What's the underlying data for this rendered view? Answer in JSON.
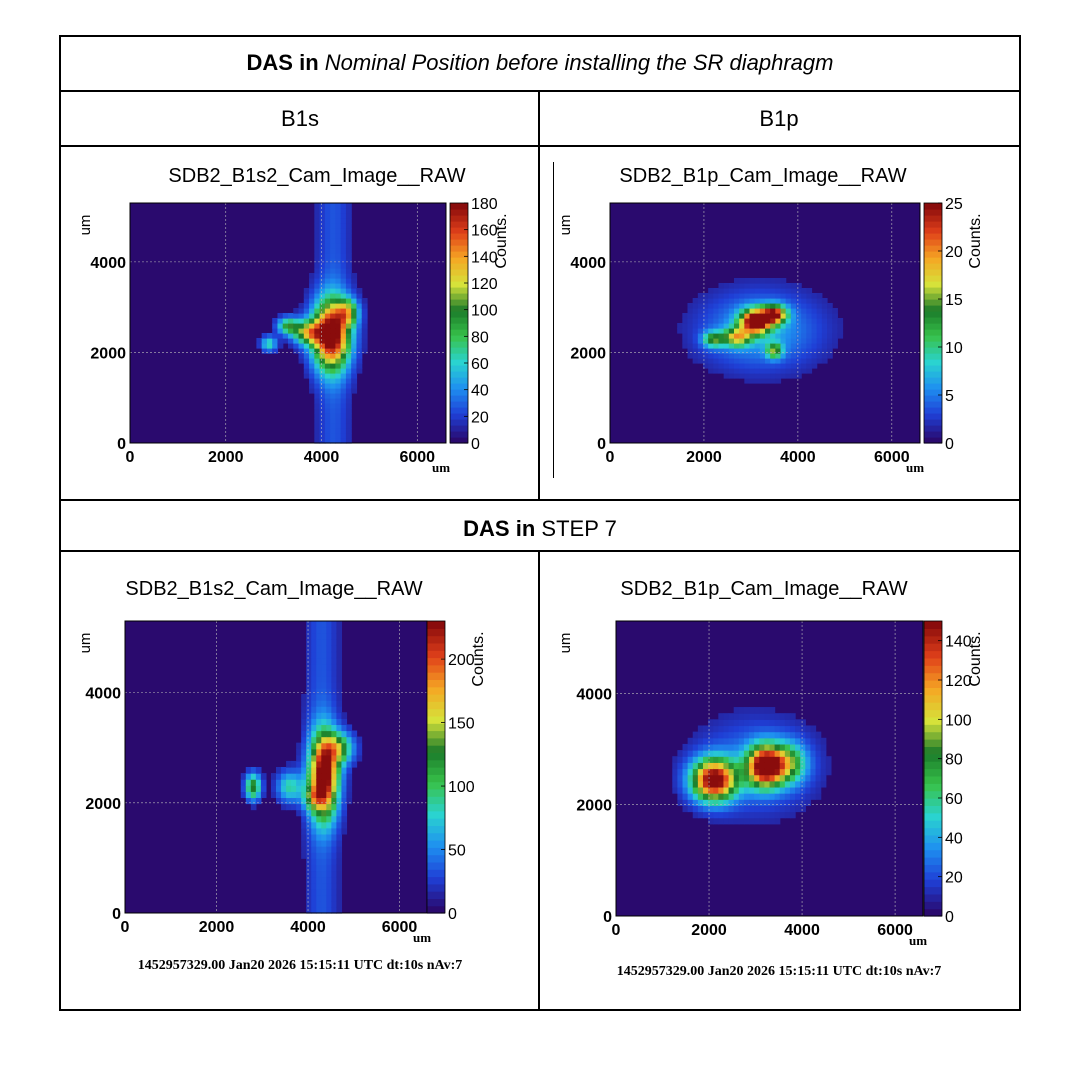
{
  "header": {
    "row1_bold": "DAS in",
    "row1_italic": "Nominal Position before installing the SR diaphragm",
    "col_left": "B1s",
    "col_right": "B1p",
    "row2_bold": "DAS in",
    "row2_plain": "STEP 7"
  },
  "timestamp_left": "1452957329.00 Jan20 2026 15:15:11 UTC dt:10s nAv:7",
  "timestamp_right": "1452957329.00 Jan20 2026 15:15:11 UTC dt:10s nAv:7",
  "colors": {
    "background_low": "#2a0a6e",
    "palette": [
      "#2a0a6e",
      "#1f3fd6",
      "#1e8ff0",
      "#2ad3d0",
      "#38c24a",
      "#1a7a2a",
      "#d6e23a",
      "#f5a623",
      "#e0401a",
      "#8a0c0c"
    ]
  },
  "chart_data": [
    {
      "type": "heatmap",
      "title": "SDB2_B1s2_Cam_Image__RAW",
      "xlabel": "um",
      "ylabel": "um",
      "zlabel": "Counts.",
      "xlim": [
        0,
        6600
      ],
      "ylim": [
        0,
        5300
      ],
      "zlim": [
        0,
        180
      ],
      "xticks": [
        0,
        2000,
        4000,
        6000
      ],
      "yticks": [
        0,
        2000,
        4000
      ],
      "zticks": [
        0,
        20,
        40,
        60,
        80,
        100,
        120,
        140,
        160,
        180
      ],
      "band_center_x": 4250,
      "peak_x": 4200,
      "peak_y": 2400,
      "peak_value": 180
    },
    {
      "type": "heatmap",
      "title": "SDB2_B1p_Cam_Image__RAW",
      "xlabel": "um",
      "ylabel": "um",
      "zlabel": "Counts.",
      "xlim": [
        0,
        6600
      ],
      "ylim": [
        0,
        5300
      ],
      "zlim": [
        0,
        25
      ],
      "xticks": [
        0,
        2000,
        4000,
        6000
      ],
      "yticks": [
        0,
        2000,
        4000
      ],
      "zticks": [
        0,
        5,
        10,
        15,
        20,
        25
      ],
      "band_center_x": null,
      "peak_x": 3100,
      "peak_y": 2700,
      "peak_value": 22
    },
    {
      "type": "heatmap",
      "title": "SDB2_B1s2_Cam_Image__RAW",
      "xlabel": "um",
      "ylabel": "um",
      "zlabel": "Counts.",
      "xlim": [
        0,
        6600
      ],
      "ylim": [
        0,
        5300
      ],
      "zlim": [
        0,
        230
      ],
      "xticks": [
        0,
        2000,
        4000,
        6000
      ],
      "yticks": [
        0,
        2000,
        4000
      ],
      "zticks": [
        0,
        50,
        100,
        150,
        200
      ],
      "band_center_x": 4300,
      "peak_x": 4350,
      "peak_y": 2500,
      "peak_value": 230
    },
    {
      "type": "heatmap",
      "title": "SDB2_B1p_Cam_Image__RAW",
      "xlabel": "um",
      "ylabel": "um",
      "zlabel": "Counts.",
      "xlim": [
        0,
        6600
      ],
      "ylim": [
        0,
        5300
      ],
      "zlim": [
        0,
        150
      ],
      "xticks": [
        0,
        2000,
        4000,
        6000
      ],
      "yticks": [
        0,
        2000,
        4000
      ],
      "zticks": [
        0,
        20,
        40,
        60,
        80,
        100,
        120,
        140
      ],
      "band_center_x": null,
      "peak_x": 2100,
      "peak_y": 2450,
      "peak_value": 150
    }
  ]
}
